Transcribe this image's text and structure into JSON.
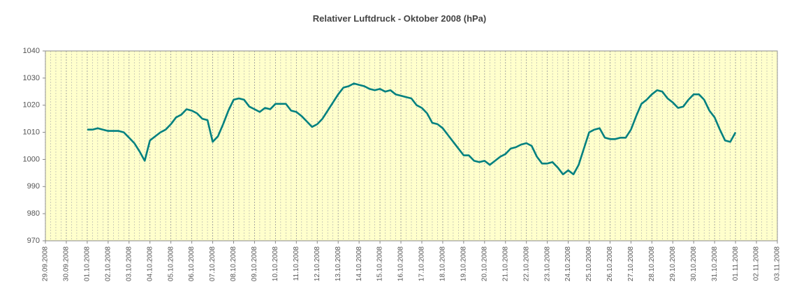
{
  "chart_data": {
    "type": "line",
    "title": "Relativer Luftdruck - Oktober 2008 (hPa)",
    "background": "#ffffcc",
    "xlim": [
      "2008-09-29 00:00",
      "2008-11-03 00:00"
    ],
    "xticks": [
      {
        "value": "2008-09-29 00:00",
        "label": "29.09.2008"
      },
      {
        "value": "2008-09-30 00:00",
        "label": "30.09.2008"
      },
      {
        "value": "2008-10-01 00:00",
        "label": "01.10.2008"
      },
      {
        "value": "2008-10-02 00:00",
        "label": "02.10.2008"
      },
      {
        "value": "2008-10-03 00:00",
        "label": "03.10.2008"
      },
      {
        "value": "2008-10-04 00:00",
        "label": "04.10.2008"
      },
      {
        "value": "2008-10-05 00:00",
        "label": "05.10.2008"
      },
      {
        "value": "2008-10-06 00:00",
        "label": "06.10.2008"
      },
      {
        "value": "2008-10-07 00:00",
        "label": "07.10.2008"
      },
      {
        "value": "2008-10-08 00:00",
        "label": "08.10.2008"
      },
      {
        "value": "2008-10-09 00:00",
        "label": "09.10.2008"
      },
      {
        "value": "2008-10-10 00:00",
        "label": "10.10.2008"
      },
      {
        "value": "2008-10-11 00:00",
        "label": "11.10.2008"
      },
      {
        "value": "2008-10-12 00:00",
        "label": "12.10.2008"
      },
      {
        "value": "2008-10-13 00:00",
        "label": "13.10.2008"
      },
      {
        "value": "2008-10-14 00:00",
        "label": "14.10.2008"
      },
      {
        "value": "2008-10-15 00:00",
        "label": "15.10.2008"
      },
      {
        "value": "2008-10-16 00:00",
        "label": "16.10.2008"
      },
      {
        "value": "2008-10-17 00:00",
        "label": "17.10.2008"
      },
      {
        "value": "2008-10-18 00:00",
        "label": "18.10.2008"
      },
      {
        "value": "2008-10-19 00:00",
        "label": "19.10.2008"
      },
      {
        "value": "2008-10-20 00:00",
        "label": "20.10.2008"
      },
      {
        "value": "2008-10-21 00:00",
        "label": "21.10.2008"
      },
      {
        "value": "2008-10-22 00:00",
        "label": "22.10.2008"
      },
      {
        "value": "2008-10-23 00:00",
        "label": "23.10.2008"
      },
      {
        "value": "2008-10-24 00:00",
        "label": "24.10.2008"
      },
      {
        "value": "2008-10-25 00:00",
        "label": "25.10.2008"
      },
      {
        "value": "2008-10-26 00:00",
        "label": "26.10.2008"
      },
      {
        "value": "2008-10-27 00:00",
        "label": "27.10.2008"
      },
      {
        "value": "2008-10-28 00:00",
        "label": "28.10.2008"
      },
      {
        "value": "2008-10-29 00:00",
        "label": "29.10.2008"
      },
      {
        "value": "2008-10-30 00:00",
        "label": "30.10.2008"
      },
      {
        "value": "2008-10-31 00:00",
        "label": "31.10.2008"
      },
      {
        "value": "2008-11-01 00:00",
        "label": "01.11.2008"
      },
      {
        "value": "2008-11-02 00:00",
        "label": "02.11.2008"
      },
      {
        "value": "2008-11-03 00:00",
        "label": "03.11.2008"
      }
    ],
    "ylim": [
      970,
      1040
    ],
    "yticks": [
      970,
      980,
      990,
      1000,
      1010,
      1020,
      1030,
      1040
    ],
    "x": [
      "2008-10-01 00:00",
      "2008-10-01 06:00",
      "2008-10-01 12:00",
      "2008-10-01 18:00",
      "2008-10-02 00:00",
      "2008-10-02 06:00",
      "2008-10-02 12:00",
      "2008-10-02 18:00",
      "2008-10-03 00:00",
      "2008-10-03 06:00",
      "2008-10-03 12:00",
      "2008-10-03 18:00",
      "2008-10-04 00:00",
      "2008-10-04 06:00",
      "2008-10-04 12:00",
      "2008-10-04 18:00",
      "2008-10-05 00:00",
      "2008-10-05 06:00",
      "2008-10-05 12:00",
      "2008-10-05 18:00",
      "2008-10-06 00:00",
      "2008-10-06 06:00",
      "2008-10-06 12:00",
      "2008-10-06 18:00",
      "2008-10-07 00:00",
      "2008-10-07 06:00",
      "2008-10-07 12:00",
      "2008-10-07 18:00",
      "2008-10-08 00:00",
      "2008-10-08 06:00",
      "2008-10-08 12:00",
      "2008-10-08 18:00",
      "2008-10-09 00:00",
      "2008-10-09 06:00",
      "2008-10-09 12:00",
      "2008-10-09 18:00",
      "2008-10-10 00:00",
      "2008-10-10 06:00",
      "2008-10-10 12:00",
      "2008-10-10 18:00",
      "2008-10-11 00:00",
      "2008-10-11 06:00",
      "2008-10-11 12:00",
      "2008-10-11 18:00",
      "2008-10-12 00:00",
      "2008-10-12 06:00",
      "2008-10-12 12:00",
      "2008-10-12 18:00",
      "2008-10-13 00:00",
      "2008-10-13 06:00",
      "2008-10-13 12:00",
      "2008-10-13 18:00",
      "2008-10-14 00:00",
      "2008-10-14 06:00",
      "2008-10-14 12:00",
      "2008-10-14 18:00",
      "2008-10-15 00:00",
      "2008-10-15 06:00",
      "2008-10-15 12:00",
      "2008-10-15 18:00",
      "2008-10-16 00:00",
      "2008-10-16 06:00",
      "2008-10-16 12:00",
      "2008-10-16 18:00",
      "2008-10-17 00:00",
      "2008-10-17 06:00",
      "2008-10-17 12:00",
      "2008-10-17 18:00",
      "2008-10-18 00:00",
      "2008-10-18 06:00",
      "2008-10-18 12:00",
      "2008-10-18 18:00",
      "2008-10-19 00:00",
      "2008-10-19 06:00",
      "2008-10-19 12:00",
      "2008-10-19 18:00",
      "2008-10-20 00:00",
      "2008-10-20 06:00",
      "2008-10-20 12:00",
      "2008-10-20 18:00",
      "2008-10-21 00:00",
      "2008-10-21 06:00",
      "2008-10-21 12:00",
      "2008-10-21 18:00",
      "2008-10-22 00:00",
      "2008-10-22 06:00",
      "2008-10-22 12:00",
      "2008-10-22 18:00",
      "2008-10-23 00:00",
      "2008-10-23 06:00",
      "2008-10-23 12:00",
      "2008-10-23 18:00",
      "2008-10-24 00:00",
      "2008-10-24 06:00",
      "2008-10-24 12:00",
      "2008-10-24 18:00",
      "2008-10-25 00:00",
      "2008-10-25 06:00",
      "2008-10-25 12:00",
      "2008-10-25 18:00",
      "2008-10-26 00:00",
      "2008-10-26 06:00",
      "2008-10-26 12:00",
      "2008-10-26 18:00",
      "2008-10-27 00:00",
      "2008-10-27 06:00",
      "2008-10-27 12:00",
      "2008-10-27 18:00",
      "2008-10-28 00:00",
      "2008-10-28 06:00",
      "2008-10-28 12:00",
      "2008-10-28 18:00",
      "2008-10-29 00:00",
      "2008-10-29 06:00",
      "2008-10-29 12:00",
      "2008-10-29 18:00",
      "2008-10-30 00:00",
      "2008-10-30 06:00",
      "2008-10-30 12:00",
      "2008-10-30 18:00",
      "2008-10-31 00:00",
      "2008-10-31 06:00",
      "2008-10-31 12:00",
      "2008-10-31 18:00",
      "2008-11-01 00:00"
    ],
    "series": [
      {
        "color": "#008080",
        "values": [
          1011,
          1011,
          1011.5,
          1011,
          1010.5,
          1010.5,
          1010.5,
          1010,
          1008,
          1006,
          1003,
          999.5,
          1007,
          1008.5,
          1010,
          1011,
          1013,
          1015.5,
          1016.5,
          1018.5,
          1018,
          1017,
          1015,
          1014.5,
          1006.5,
          1008.5,
          1013,
          1018,
          1022,
          1022.5,
          1022,
          1019.5,
          1018.5,
          1017.5,
          1019,
          1018.5,
          1020.5,
          1020.5,
          1020.5,
          1018,
          1017.5,
          1016,
          1014,
          1012,
          1013,
          1015,
          1018,
          1021,
          1024,
          1026.5,
          1027,
          1028,
          1027.5,
          1027,
          1026,
          1025.5,
          1026,
          1025,
          1025.5,
          1024,
          1023.5,
          1023,
          1022.5,
          1020,
          1019,
          1017,
          1013.5,
          1013,
          1011.5,
          1009,
          1006.5,
          1004,
          1001.5,
          1001.5,
          999.5,
          999,
          999.5,
          998,
          999.5,
          1001,
          1002,
          1004,
          1004.5,
          1005.5,
          1006,
          1005,
          1001,
          998.5,
          998.5,
          999,
          997,
          994.5,
          996,
          994.5,
          998,
          1004,
          1010,
          1011,
          1011.5,
          1008,
          1007.5,
          1007.5,
          1008,
          1008,
          1011,
          1016,
          1020.5,
          1022,
          1024,
          1025.5,
          1025,
          1022.5,
          1021,
          1019,
          1019.5,
          1022,
          1024,
          1024,
          1022,
          1018,
          1015.5,
          1011,
          1007,
          1006.5,
          1010
        ]
      }
    ]
  }
}
